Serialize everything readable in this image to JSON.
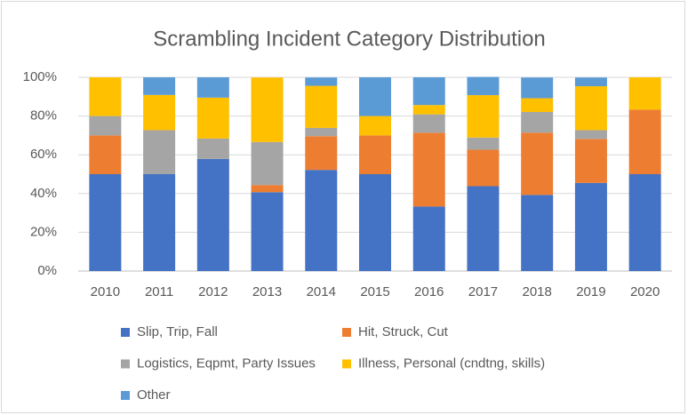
{
  "chart_data": {
    "type": "stacked_bar",
    "title": "Scrambling Incident Category Distribution",
    "categories": [
      "2010",
      "2011",
      "2012",
      "2013",
      "2014",
      "2015",
      "2016",
      "2017",
      "2018",
      "2019",
      "2020"
    ],
    "series": [
      {
        "name": "Slip, Trip, Fall",
        "color": "#4472c4",
        "values": [
          50,
          50,
          57.9,
          40.7,
          52.2,
          50,
          33.3,
          43.8,
          39.3,
          45.5,
          50
        ]
      },
      {
        "name": "Hit, Struck, Cut",
        "color": "#ed7d31",
        "values": [
          20,
          0,
          0,
          3.7,
          17.4,
          20,
          38.1,
          18.8,
          32.1,
          22.7,
          33.3
        ]
      },
      {
        "name": "Logistics, Eqpmt, Party Issues",
        "color": "#a5a5a5",
        "values": [
          10,
          22.7,
          10.5,
          22.2,
          4.3,
          0,
          9.5,
          6.3,
          10.7,
          4.5,
          0
        ]
      },
      {
        "name": "Illness, Personal (cndtng, skills)",
        "color": "#ffc000",
        "values": [
          20,
          18.2,
          21.1,
          33.3,
          21.7,
          10,
          4.8,
          21.9,
          7.1,
          22.7,
          16.7
        ]
      },
      {
        "name": "Other",
        "color": "#5b9bd5",
        "values": [
          0,
          9.1,
          10.5,
          0,
          4.3,
          20,
          14.3,
          9.4,
          10.7,
          4.5,
          0
        ]
      }
    ],
    "ylim": [
      0,
      100
    ],
    "yticks": [
      {
        "value": 0,
        "label": "0%"
      },
      {
        "value": 20,
        "label": "20%"
      },
      {
        "value": 40,
        "label": "40%"
      },
      {
        "value": 60,
        "label": "60%"
      },
      {
        "value": 80,
        "label": "80%"
      },
      {
        "value": 100,
        "label": "100%"
      }
    ],
    "grid": true
  }
}
